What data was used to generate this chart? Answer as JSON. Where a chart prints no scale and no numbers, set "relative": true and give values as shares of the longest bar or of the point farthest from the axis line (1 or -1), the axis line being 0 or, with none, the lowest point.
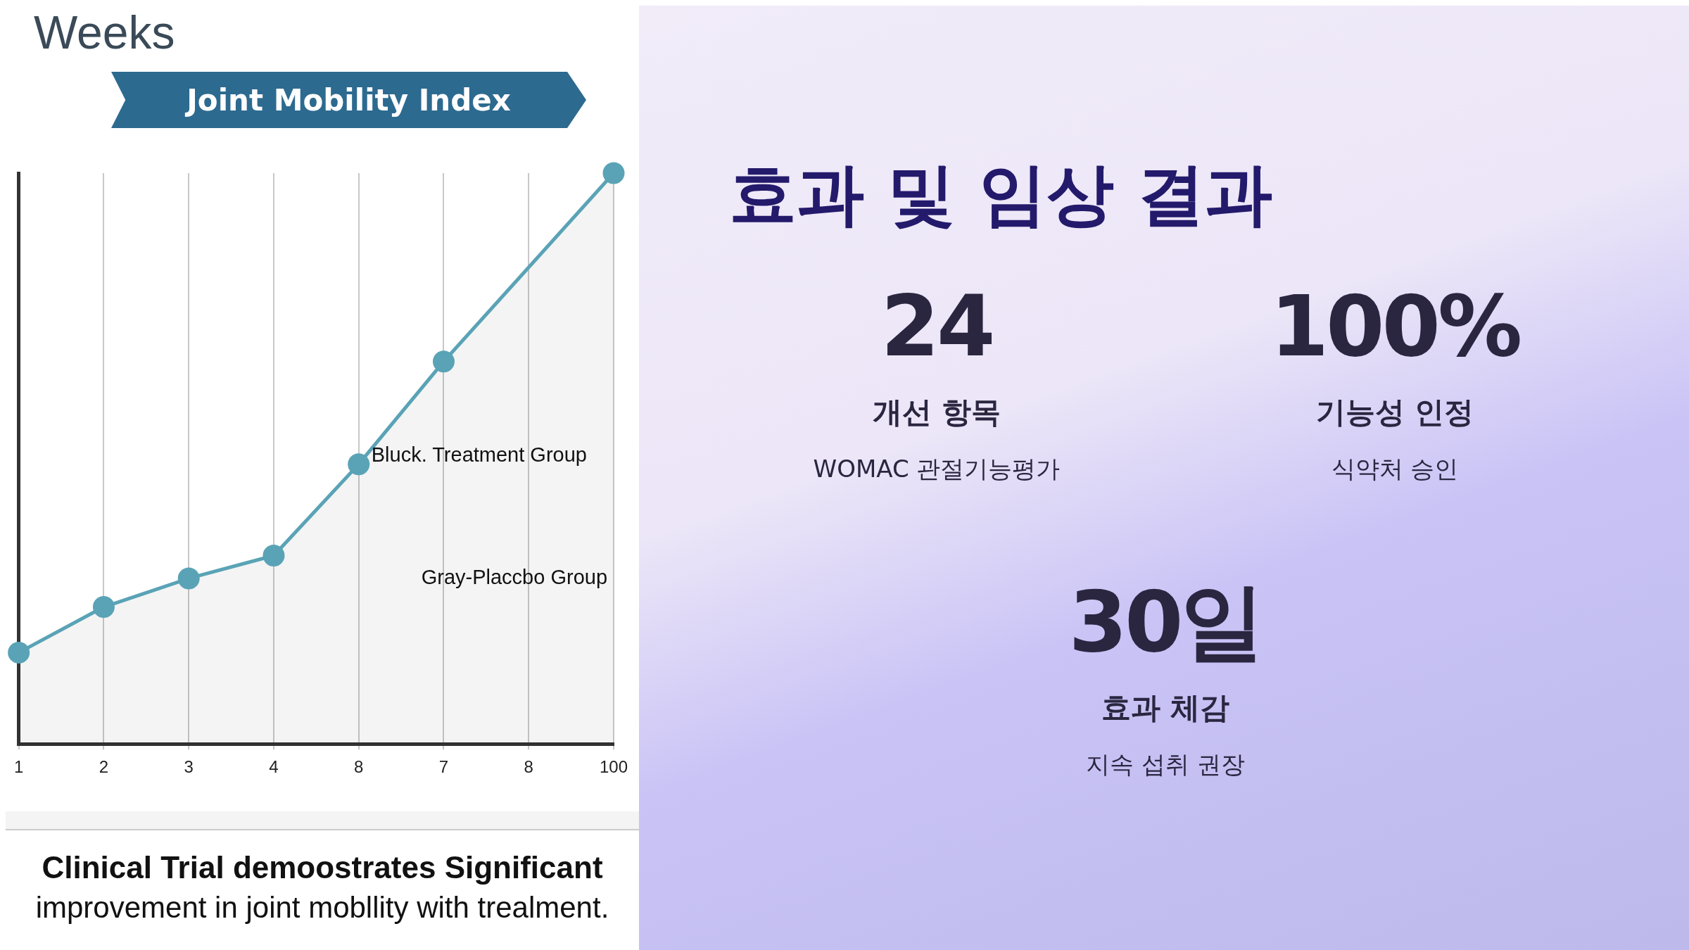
{
  "chart_data": [
    {
      "type": "area",
      "title": "Joint Mobility Index",
      "xlabel": "Weeks",
      "categories": [
        "1",
        "2",
        "3",
        "4",
        "8",
        "7",
        "8",
        "100"
      ],
      "series": [
        {
          "color": "#5aa3b6",
          "values": [
            0.16,
            0.24,
            0.29,
            0.33,
            0.49,
            0.67,
            null,
            1
          ]
        }
      ],
      "relative": true,
      "grid": true,
      "marker": "circle",
      "annotations": [
        "Bluck. Treatment Group",
        "Gray-Placcbo Group",
        "Clinical Trial demoostrates Significant",
        "improvement in joint mobllity with trealment."
      ]
    },
    {
      "type": "other",
      "title": "효과 및 임상 결과",
      "annotations": [
        "24",
        "개선 항목",
        "WOMAC 관절기능평가",
        "100%",
        "기능성 인정",
        "식약처 승인",
        "30일",
        "효과 체감",
        "지속 섭취 권장"
      ]
    }
  ]
}
